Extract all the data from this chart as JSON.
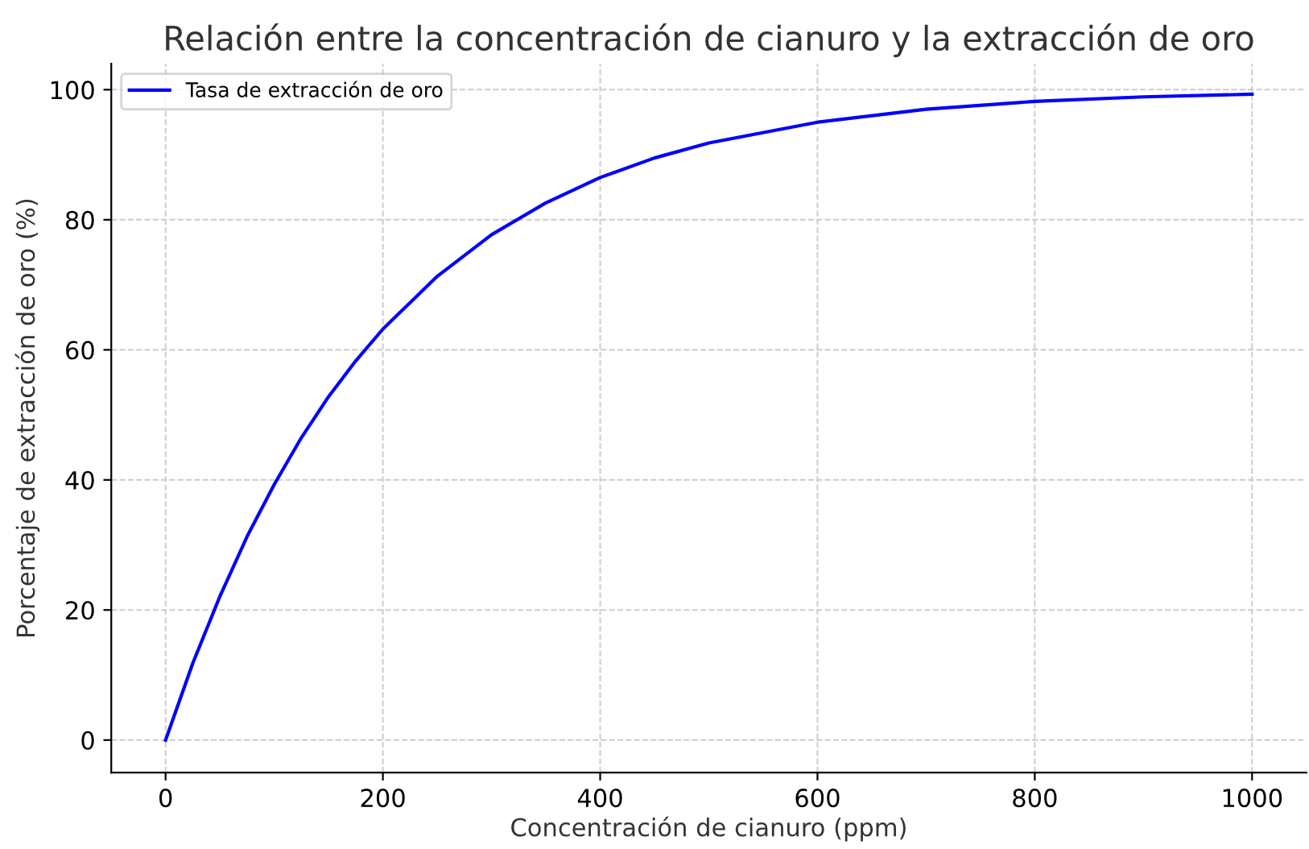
{
  "chart_data": {
    "type": "line",
    "title": "Relación entre la concentración de cianuro y la extracción de oro",
    "xlabel": "Concentración de cianuro (ppm)",
    "ylabel": "Porcentaje de extracción de oro (%)",
    "x": [
      0,
      25,
      50,
      75,
      100,
      125,
      150,
      175,
      200,
      250,
      300,
      350,
      400,
      450,
      500,
      600,
      700,
      800,
      900,
      1000
    ],
    "series": [
      {
        "name": "Tasa de extracción de oro",
        "color": "#0000ff",
        "values": [
          0,
          11.8,
          22.1,
          31.3,
          39.3,
          46.5,
          52.8,
          58.3,
          63.2,
          71.3,
          77.7,
          82.6,
          86.5,
          89.5,
          91.8,
          95.0,
          97.0,
          98.2,
          98.9,
          99.3
        ]
      }
    ],
    "xlim": [
      -50,
      1050
    ],
    "ylim": [
      -5,
      104
    ],
    "xticks": [
      0,
      200,
      400,
      600,
      800,
      1000
    ],
    "yticks": [
      0,
      20,
      40,
      60,
      80,
      100
    ],
    "grid": true,
    "legend": "top left",
    "marker": "none",
    "line_style": "solid"
  }
}
